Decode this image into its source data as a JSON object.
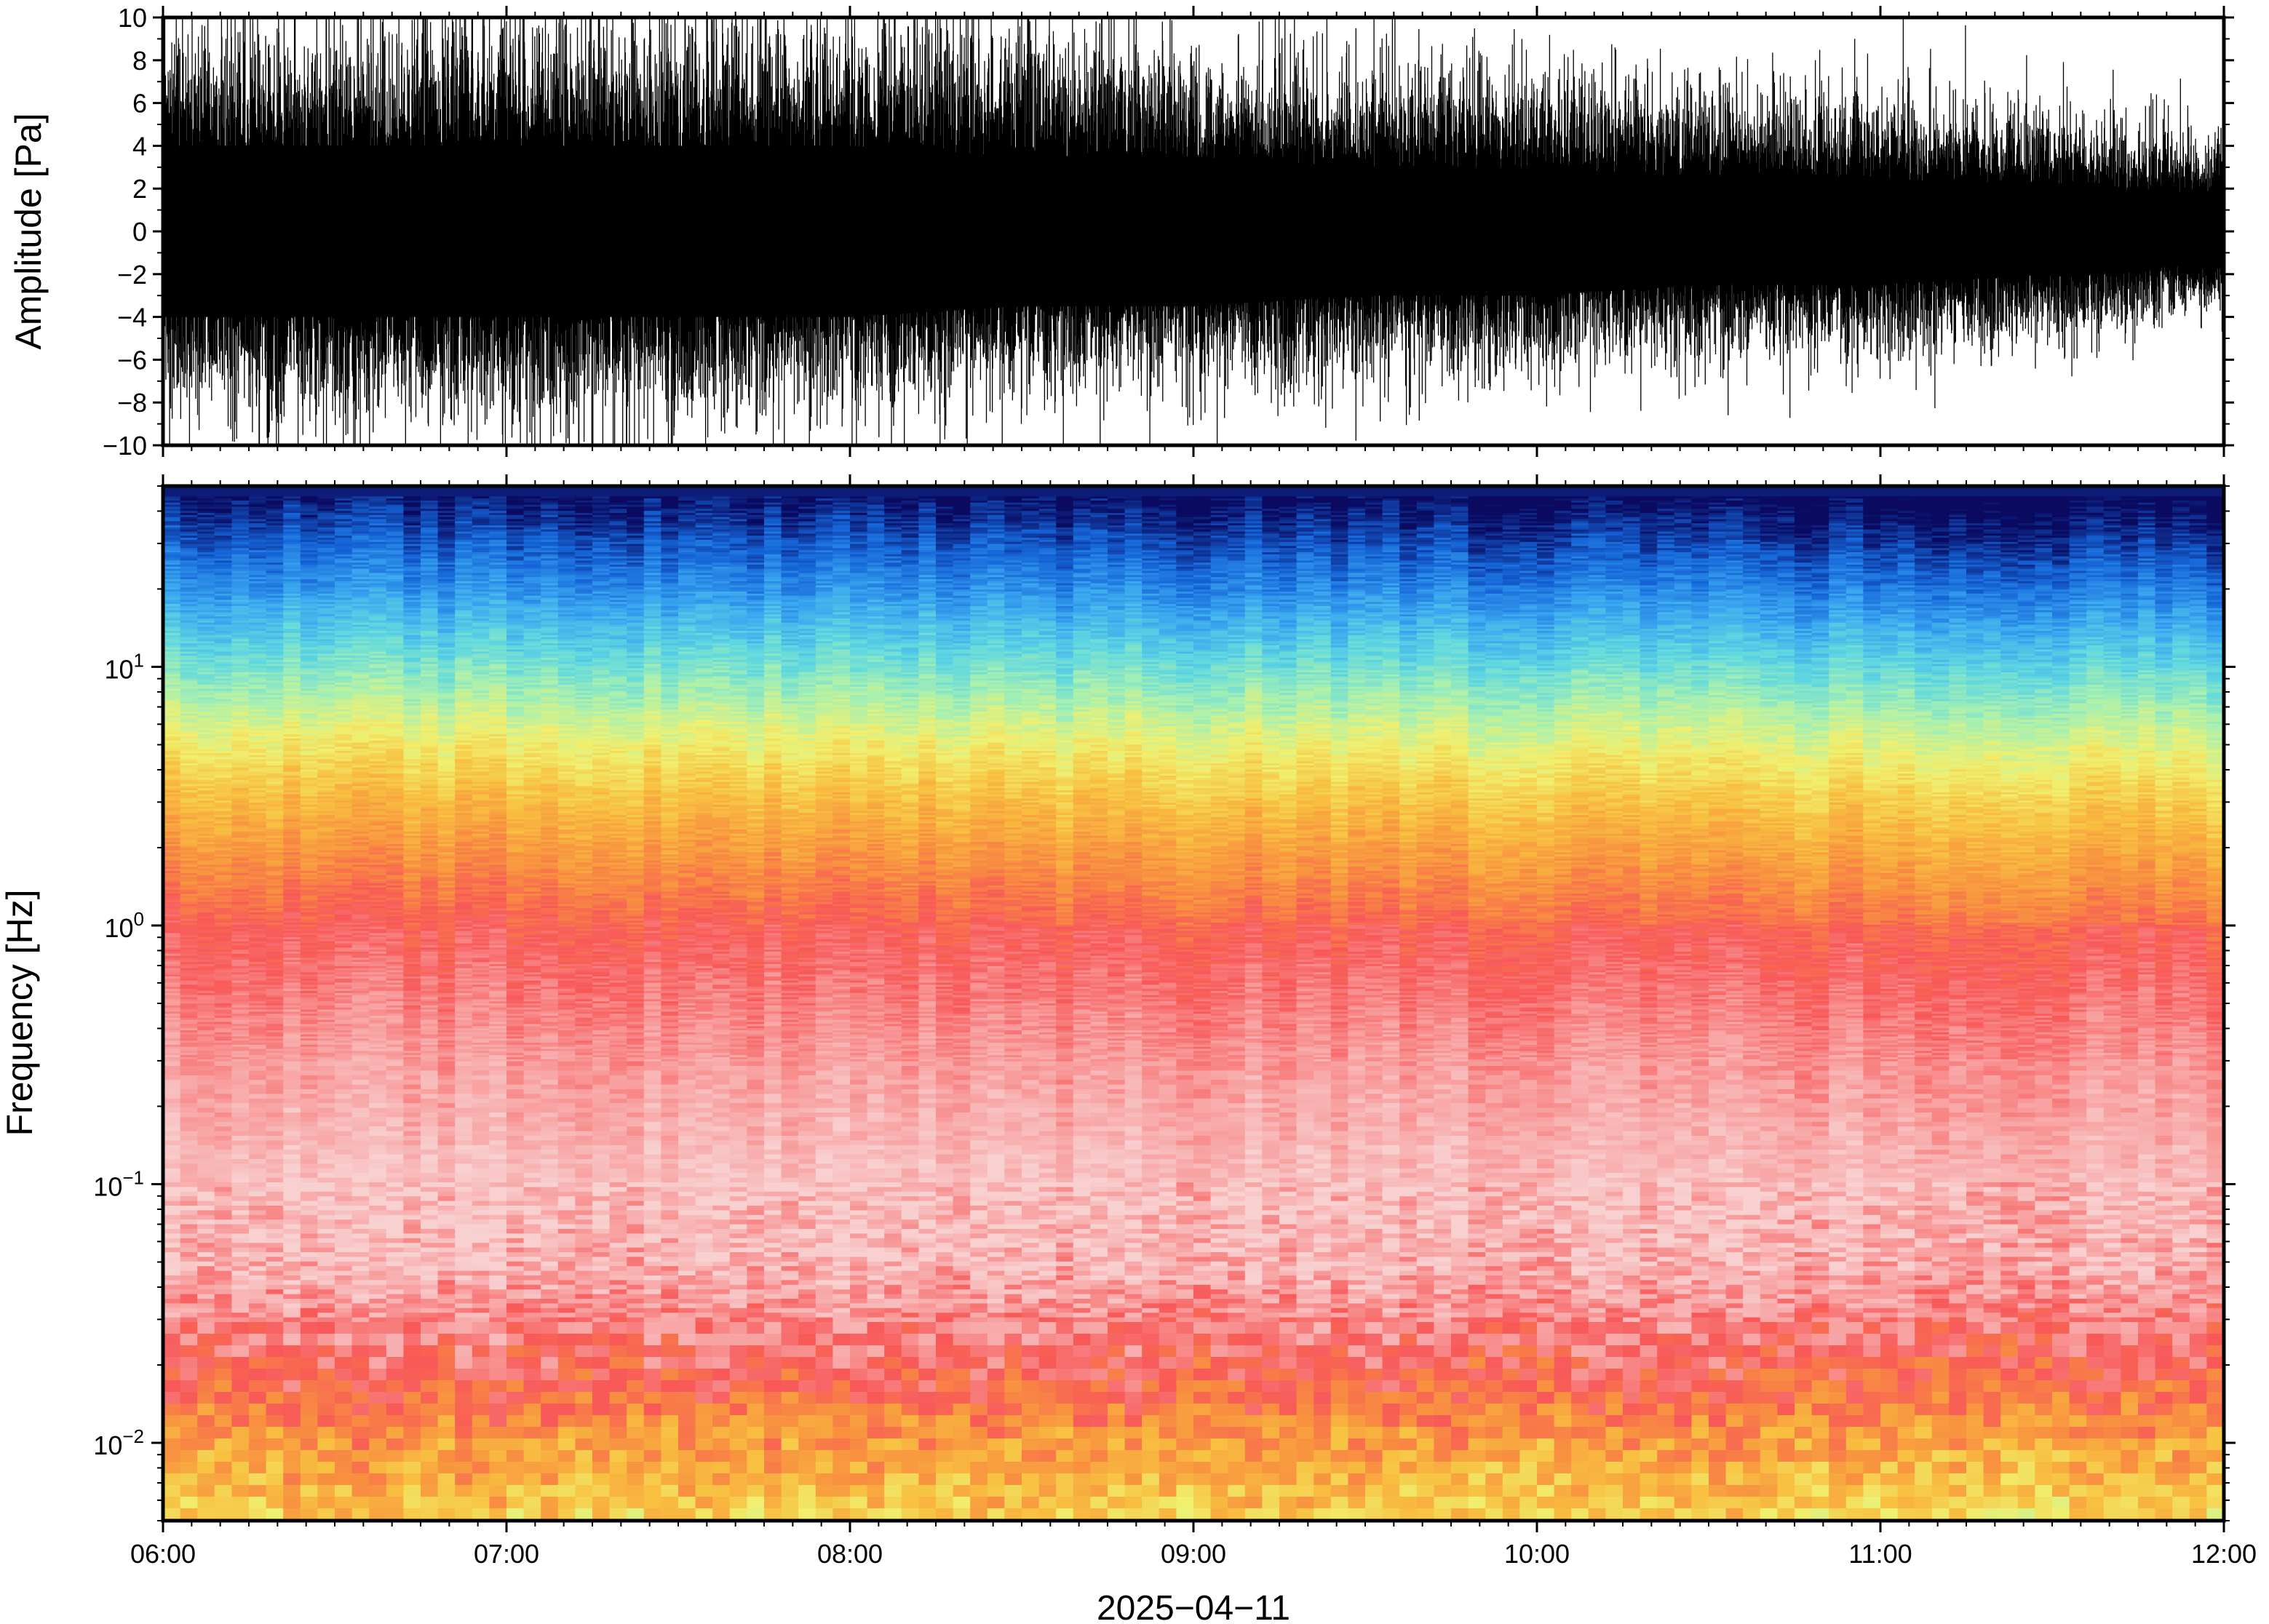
{
  "chart_data": [
    {
      "type": "line",
      "ylabel": "Amplitude [Pa]",
      "ylim": [
        -10,
        10
      ],
      "yticks": [
        "10",
        "8",
        "6",
        "4",
        "2",
        "0",
        "−2",
        "−4",
        "−6",
        "−8",
        "−10"
      ],
      "ytick_values": [
        10,
        8,
        6,
        4,
        2,
        0,
        -2,
        -4,
        -6,
        -8,
        -10
      ],
      "xlim": [
        "06:00",
        "12:00"
      ],
      "grid": false,
      "color": "#000000",
      "envelope": {
        "x": [
          "06:00",
          "06:30",
          "07:00",
          "07:30",
          "08:00",
          "08:30",
          "09:00",
          "09:30",
          "10:00",
          "10:30",
          "11:00",
          "11:30",
          "12:00"
        ],
        "typical_peak_pos": [
          7.5,
          7.5,
          8,
          7.5,
          7.5,
          7.5,
          6.5,
          6,
          6,
          5.5,
          5,
          4.5,
          3.5
        ],
        "typical_peak_neg": [
          -6.5,
          -7,
          -7,
          -7,
          -6.5,
          -6,
          -5.5,
          -5.5,
          -5,
          -4.5,
          -4.5,
          -4,
          -3
        ],
        "dense_core": [
          4,
          4,
          4,
          4,
          4,
          3.5,
          3.5,
          3,
          3,
          2.5,
          2.5,
          2,
          1.5
        ]
      }
    },
    {
      "type": "heatmap",
      "ylabel": "Frequency [Hz]",
      "yscale": "log",
      "ylim": [
        0.005,
        50
      ],
      "yticks": [
        {
          "value": 0.01,
          "base": "10",
          "exp": "−2"
        },
        {
          "value": 0.1,
          "base": "10",
          "exp": "−1"
        },
        {
          "value": 1,
          "base": "10",
          "exp": "0"
        },
        {
          "value": 10,
          "base": "10",
          "exp": "1"
        }
      ],
      "xlabel": "2025−04−11",
      "xticks": [
        "06:00",
        "07:00",
        "08:00",
        "09:00",
        "10:00",
        "11:00",
        "12:00"
      ],
      "xlim": [
        "06:00",
        "12:00"
      ],
      "colormap": [
        "#0a0a60",
        "#1565d8",
        "#3aa6f0",
        "#60d8e0",
        "#a8f0b0",
        "#f0f070",
        "#f8c040",
        "#f89040",
        "#f85858",
        "#f8a0a0",
        "#f8d0d0"
      ],
      "description_levels": {
        "freq_hz": [
          50,
          30,
          20,
          10,
          5,
          3,
          1,
          0.3,
          0.1,
          0.05,
          0.02,
          0.01,
          0.005
        ],
        "relative_power": [
          0.0,
          0.1,
          0.18,
          0.35,
          0.52,
          0.62,
          0.8,
          0.9,
          0.97,
          0.95,
          0.82,
          0.68,
          0.58
        ]
      }
    }
  ]
}
